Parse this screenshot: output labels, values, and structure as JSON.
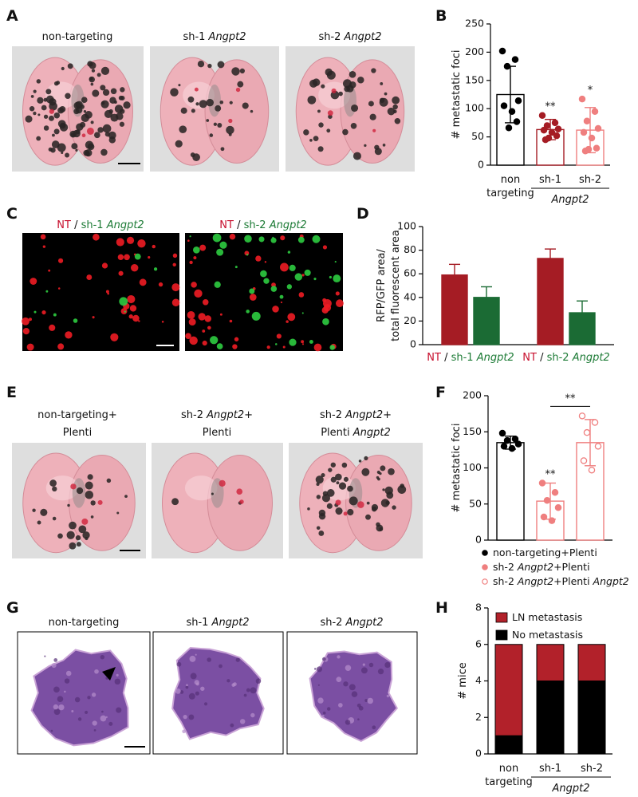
{
  "panel_letters": [
    "A",
    "B",
    "C",
    "D",
    "E",
    "F",
    "G",
    "H"
  ],
  "image_panels": {
    "A": {
      "labels": [
        "non-targeting",
        "sh-1 Angpt2",
        "sh-2 Angpt2"
      ]
    },
    "C": {
      "labels": [
        "NT / sh-1 Angpt2",
        "NT / sh-2 Angpt2"
      ]
    },
    "E": {
      "labels": [
        [
          "non-targeting+",
          "Plenti"
        ],
        [
          "sh-2 Angpt2+",
          "Plenti"
        ],
        [
          "sh-2 Angpt2+",
          "Plenti Angpt2"
        ]
      ]
    },
    "G": {
      "labels": [
        "non-targeting",
        "sh-1 Angpt2",
        "sh-2 Angpt2"
      ]
    }
  },
  "chart_data": [
    {
      "type": "bar",
      "ylabel": "# metastatic foci",
      "categories": [
        [
          "non",
          "targeting"
        ],
        [
          "sh-1"
        ],
        [
          "sh-2"
        ]
      ],
      "group_label": "Angpt2",
      "group_categories": [
        1,
        2
      ],
      "values": [
        125,
        63,
        62
      ],
      "errors": [
        50,
        18,
        40
      ],
      "error_bars": "both",
      "points": [
        [
          202,
          187,
          175,
          114,
          105,
          95,
          77,
          66
        ],
        [
          88,
          75,
          70,
          64,
          62,
          58,
          52,
          48,
          45
        ],
        [
          117,
          95,
          78,
          65,
          58,
          48,
          30,
          28,
          25
        ]
      ],
      "colors": [
        "#000000",
        "#a51c24",
        "#ef7f7f"
      ],
      "fill": "none",
      "ylim": [
        0,
        250
      ],
      "yticks": [
        0,
        50,
        100,
        150,
        200,
        250
      ],
      "annotations": [
        {
          "text": "**",
          "category": 1
        },
        {
          "text": "*",
          "category": 2
        }
      ]
    },
    {
      "type": "bar",
      "ylabel": [
        "RFP/GFP area/",
        "total fluorescent area"
      ],
      "categories": [
        "NT / sh-1 Angpt2",
        "NT / sh-2 Angpt2"
      ],
      "series": [
        {
          "color": "#a51c24",
          "values": [
            59,
            73
          ],
          "errors": [
            9,
            8
          ]
        },
        {
          "color": "#1b6b34",
          "values": [
            40,
            27
          ],
          "errors": [
            9,
            10
          ]
        }
      ],
      "error_bars": "up",
      "ylim": [
        0,
        100
      ],
      "yticks": [
        0,
        20,
        40,
        60,
        80,
        100
      ]
    },
    {
      "type": "bar",
      "ylabel": "# metastatic foci",
      "categories": [
        null
      ],
      "series": [
        {
          "name": "non-targeting+Plenti",
          "color": "#000000",
          "fill": "none",
          "marker": "filled",
          "values": [
            135
          ],
          "errors": [
            9
          ],
          "points": [
            [
              148,
              140,
              138,
              133,
              130,
              127
            ]
          ]
        },
        {
          "name": "sh-2 Angpt2+Plenti",
          "color": "#ef7f7f",
          "fill": "none",
          "marker": "filled",
          "values": [
            54
          ],
          "errors": [
            25
          ],
          "points": [
            [
              79,
              66,
              55,
              45,
              32,
              27
            ]
          ]
        },
        {
          "name": "sh-2 Angpt2+Plenti Angpt2",
          "color": "#ef7f7f",
          "fill": "none",
          "marker": "open",
          "values": [
            135
          ],
          "errors": [
            32
          ],
          "points": [
            [
              172,
              163,
              149,
              130,
              110,
              97
            ]
          ]
        }
      ],
      "error_bars": "both",
      "legend": "below",
      "ylim": [
        0,
        200
      ],
      "yticks": [
        0,
        50,
        100,
        150,
        200
      ],
      "annotations": [
        {
          "text": "**",
          "series": 1
        },
        {
          "text": "**",
          "between": [
            1,
            2
          ]
        }
      ]
    },
    {
      "type": "bar",
      "stacked": true,
      "ylabel": "# mice",
      "categories": [
        [
          "non",
          "targeting"
        ],
        [
          "sh-1"
        ],
        [
          "sh-2"
        ]
      ],
      "group_label": "Angpt2",
      "group_categories": [
        1,
        2
      ],
      "series": [
        {
          "name": "LN metastasis",
          "color": "#b2212a",
          "values": [
            5,
            2,
            2
          ]
        },
        {
          "name": "No metastasis",
          "color": "#000000",
          "values": [
            1,
            4,
            4
          ]
        }
      ],
      "legend": "upper left",
      "ylim": [
        0,
        8
      ],
      "yticks": [
        0,
        2,
        4,
        6,
        8
      ]
    }
  ]
}
